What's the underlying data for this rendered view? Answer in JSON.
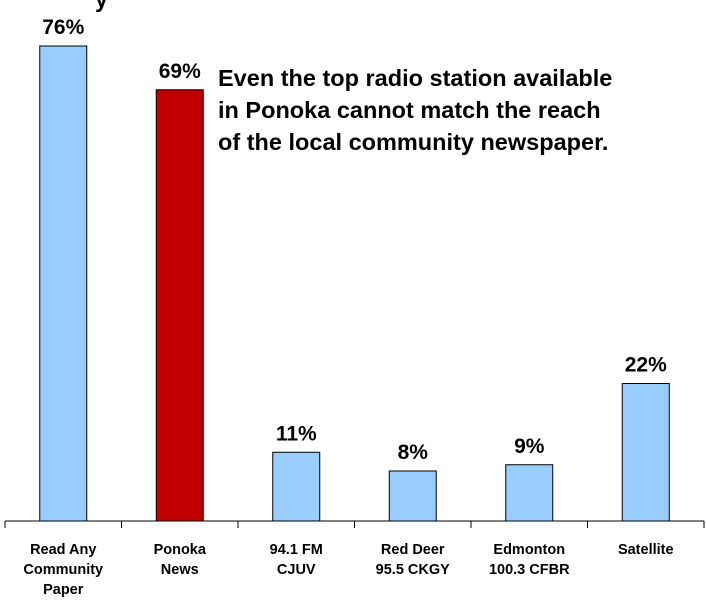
{
  "chart_data": {
    "type": "bar",
    "title_fragment": "y",
    "categories": [
      [
        "Read Any",
        "Community",
        "Paper"
      ],
      [
        "Ponoka",
        "News"
      ],
      [
        "94.1 FM",
        "CJUV"
      ],
      [
        "Red Deer",
        "95.5 CKGY"
      ],
      [
        "Edmonton",
        "100.3 CFBR"
      ],
      [
        "Satellite"
      ]
    ],
    "values": [
      76,
      69,
      11,
      8,
      9,
      22
    ],
    "data_labels": [
      "76%",
      "69%",
      "11%",
      "8%",
      "9%",
      "22%"
    ],
    "bar_colors": [
      "#99ccff",
      "#c00000",
      "#99ccff",
      "#99ccff",
      "#99ccff",
      "#99ccff"
    ],
    "ylim": [
      0,
      80
    ],
    "grid": false,
    "annotation": [
      "Even the top radio station available",
      "in Ponoka cannot match the reach",
      "of the local community newspaper."
    ]
  }
}
